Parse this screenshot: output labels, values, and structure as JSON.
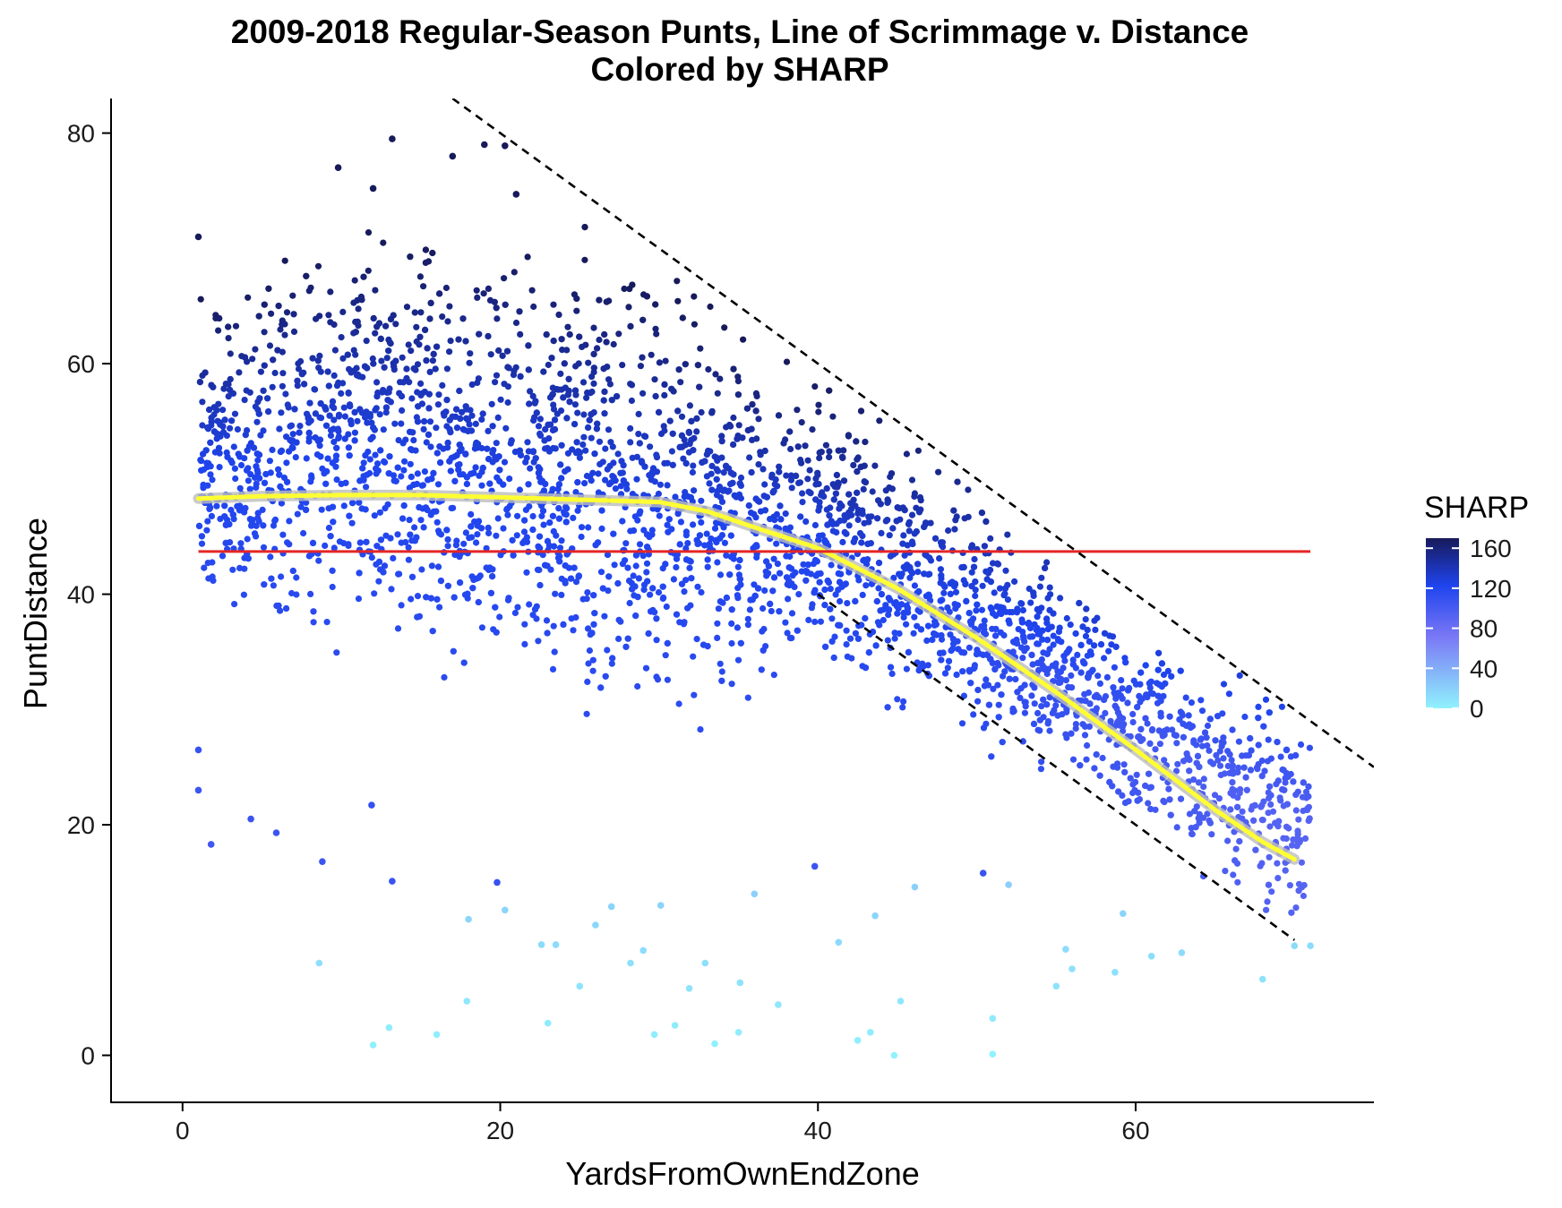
{
  "chart_data": {
    "type": "scatter",
    "title": "2009-2018 Regular-Season Punts, Line of Scrimmage v. Distance",
    "subtitle": "Colored by SHARP",
    "xlabel": "YardsFromOwnEndZone",
    "ylabel": "PuntDistance",
    "xlim": [
      -4.5,
      75
    ],
    "ylim": [
      -4,
      83
    ],
    "x_ticks": [
      0,
      20,
      40,
      60
    ],
    "y_ticks": [
      0,
      20,
      40,
      60,
      80
    ],
    "grid": false,
    "legend": {
      "title": "SHARP",
      "placement": "right",
      "ticks": [
        160,
        120,
        80,
        40,
        0
      ],
      "range": [
        0,
        170
      ],
      "colors": {
        "low": "#90f2fd",
        "mid_low": "#7a78f5",
        "mid": "#1f44ee",
        "high": "#171a5a"
      }
    },
    "point_cloud": {
      "description_units": "data",
      "x_range": [
        1,
        71
      ],
      "band": [
        {
          "x": 1,
          "low": 36,
          "high": 66
        },
        {
          "x": 10,
          "low": 32,
          "high": 72
        },
        {
          "x": 20,
          "low": 27,
          "high": 72
        },
        {
          "x": 30,
          "low": 26,
          "high": 68
        },
        {
          "x": 40,
          "low": 30,
          "high": 59
        },
        {
          "x": 50,
          "low": 25,
          "high": 49
        },
        {
          "x": 60,
          "low": 18,
          "high": 38
        },
        {
          "x": 70,
          "low": 10,
          "high": 30
        }
      ],
      "outliers": [
        [
          1,
          71
        ],
        [
          1,
          26.5
        ],
        [
          1,
          23
        ],
        [
          1.8,
          18.3
        ],
        [
          8.6,
          8
        ],
        [
          8.8,
          16.8
        ],
        [
          9.8,
          77
        ],
        [
          12,
          75.2
        ],
        [
          13.2,
          79.5
        ],
        [
          17,
          78
        ],
        [
          19,
          79
        ],
        [
          20.3,
          78.9
        ],
        [
          21,
          74.7
        ],
        [
          4.3,
          20.5
        ],
        [
          5.9,
          19.3
        ],
        [
          11.9,
          21.7
        ],
        [
          13.2,
          15.1
        ],
        [
          12,
          0.9
        ],
        [
          13,
          2.4
        ],
        [
          16,
          1.8
        ],
        [
          17.9,
          4.7
        ],
        [
          18,
          11.8
        ],
        [
          19.8,
          15
        ],
        [
          20.3,
          12.6
        ],
        [
          22.6,
          9.6
        ],
        [
          23.5,
          9.6
        ],
        [
          23,
          2.8
        ],
        [
          25,
          6
        ],
        [
          26,
          11.3
        ],
        [
          27,
          12.9
        ],
        [
          28.2,
          8
        ],
        [
          29,
          9.1
        ],
        [
          29.7,
          1.8
        ],
        [
          30.1,
          13
        ],
        [
          31,
          2.6
        ],
        [
          31.9,
          5.8
        ],
        [
          32.9,
          8
        ],
        [
          33.5,
          1
        ],
        [
          35,
          2
        ],
        [
          35.1,
          6.3
        ],
        [
          36,
          14
        ],
        [
          37.5,
          4.4
        ],
        [
          39.8,
          16.4
        ],
        [
          41.3,
          9.8
        ],
        [
          42.5,
          1.3
        ],
        [
          43.3,
          2
        ],
        [
          43.6,
          12.1
        ],
        [
          44.8,
          0
        ],
        [
          45.2,
          4.7
        ],
        [
          46.1,
          14.6
        ],
        [
          50.4,
          15.8
        ],
        [
          51,
          3.2
        ],
        [
          51,
          0.1
        ],
        [
          52,
          14.8
        ],
        [
          55,
          6
        ],
        [
          55.6,
          9.2
        ],
        [
          56,
          7.5
        ],
        [
          58.7,
          7.2
        ],
        [
          59.2,
          12.3
        ],
        [
          61,
          8.6
        ],
        [
          62.9,
          8.9
        ],
        [
          68,
          6.6
        ],
        [
          70,
          9.5
        ],
        [
          71,
          9.5
        ],
        [
          70.8,
          21.3
        ],
        [
          69.5,
          26.5
        ]
      ]
    },
    "series": [
      {
        "type": "line",
        "color": "#ffff33",
        "points": [
          [
            1,
            48.3
          ],
          [
            5,
            48.5
          ],
          [
            10,
            48.6
          ],
          [
            15,
            48.6
          ],
          [
            20,
            48.4
          ],
          [
            25,
            48.2
          ],
          [
            30,
            48
          ],
          [
            33,
            47.2
          ],
          [
            36,
            45.8
          ],
          [
            40,
            44
          ],
          [
            45,
            40.5
          ],
          [
            50,
            36.2
          ],
          [
            55,
            31.5
          ],
          [
            60,
            26.5
          ],
          [
            65,
            21.3
          ],
          [
            68,
            18.5
          ],
          [
            70,
            17
          ]
        ]
      },
      {
        "type": "hline",
        "color": "#e32626",
        "y": 43.7,
        "x_range": [
          1,
          71
        ]
      },
      {
        "type": "dashed",
        "color": "#000000",
        "points": [
          [
            17,
            83
          ],
          [
            75,
            25
          ]
        ]
      },
      {
        "type": "dashed",
        "color": "#000000",
        "points": [
          [
            40,
            40
          ],
          [
            70,
            10
          ]
        ]
      }
    ]
  }
}
